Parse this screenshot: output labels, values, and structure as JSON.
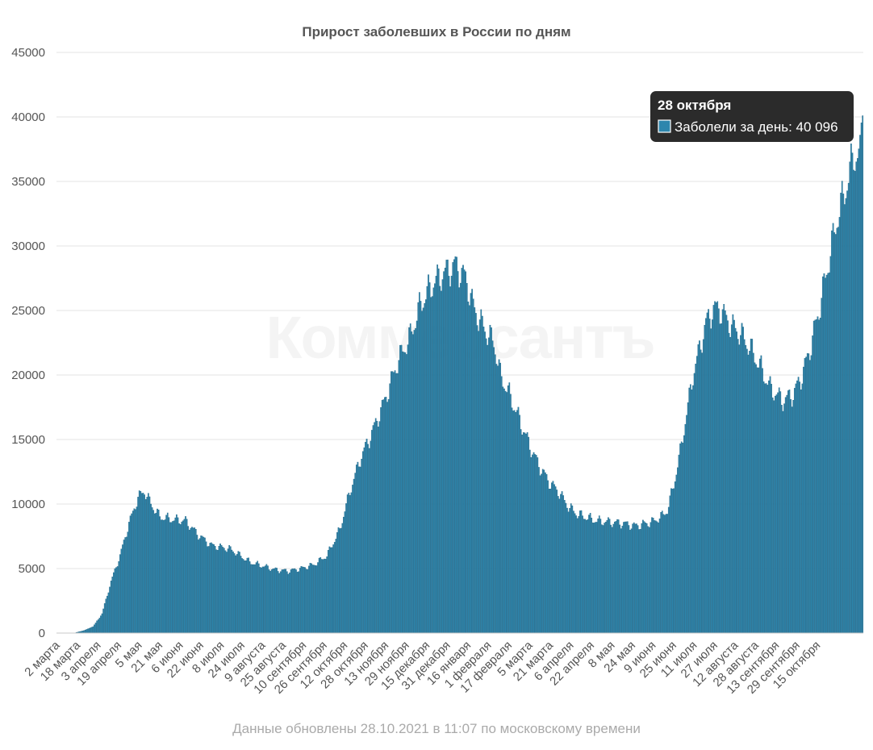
{
  "chart_data": {
    "type": "bar",
    "title": "Прирост заболевших в России по дням",
    "series_name": "Заболели за день",
    "y_axis": {
      "min": 0,
      "max": 45000,
      "ticks": [
        "0",
        "5000",
        "10000",
        "15000",
        "20000",
        "25000",
        "30000",
        "35000",
        "40000",
        "45000"
      ]
    },
    "grid": true,
    "x_tick_labels": [
      "2 марта",
      "18 марта",
      "3 апреля",
      "19 апреля",
      "5 мая",
      "21 мая",
      "6 июня",
      "22 июня",
      "8 июля",
      "24 июля",
      "9 августа",
      "25 августа",
      "10 сентября",
      "26 сентября",
      "12 октября",
      "28 октября",
      "13 ноября",
      "29 ноября",
      "15 декабря",
      "31 декабря",
      "16 января",
      "1 февраля",
      "17 февраля",
      "5 марта",
      "21 марта",
      "6 апреля",
      "22 апреля",
      "8 мая",
      "24 мая",
      "9 июня",
      "25 июня",
      "11 июля",
      "27 июля",
      "12 августа",
      "28 августа",
      "13 сентября",
      "29 сентября",
      "15 октября"
    ],
    "period": {
      "first_day": "2 марта 2020",
      "last_day": "28 октября 2021"
    },
    "daily_profile_knots": [
      [
        0,
        0
      ],
      [
        14,
        20
      ],
      [
        21,
        200
      ],
      [
        28,
        500
      ],
      [
        35,
        1500
      ],
      [
        42,
        4000
      ],
      [
        49,
        6000
      ],
      [
        56,
        8500
      ],
      [
        63,
        10500
      ],
      [
        68,
        11000
      ],
      [
        73,
        10000
      ],
      [
        80,
        9000
      ],
      [
        90,
        8800
      ],
      [
        100,
        8700
      ],
      [
        110,
        7600
      ],
      [
        120,
        6800
      ],
      [
        135,
        6500
      ],
      [
        150,
        5500
      ],
      [
        160,
        5200
      ],
      [
        170,
        4900
      ],
      [
        180,
        4800
      ],
      [
        190,
        5000
      ],
      [
        200,
        5300
      ],
      [
        210,
        6000
      ],
      [
        220,
        8000
      ],
      [
        228,
        11000
      ],
      [
        236,
        13500
      ],
      [
        245,
        15500
      ],
      [
        255,
        18000
      ],
      [
        265,
        21000
      ],
      [
        275,
        23000
      ],
      [
        283,
        25500
      ],
      [
        292,
        27000
      ],
      [
        300,
        27800
      ],
      [
        310,
        28500
      ],
      [
        318,
        27500
      ],
      [
        325,
        25000
      ],
      [
        333,
        23500
      ],
      [
        340,
        22500
      ],
      [
        345,
        20000
      ],
      [
        352,
        18500
      ],
      [
        360,
        16500
      ],
      [
        368,
        14500
      ],
      [
        375,
        13000
      ],
      [
        383,
        11700
      ],
      [
        390,
        11000
      ],
      [
        398,
        9800
      ],
      [
        405,
        9200
      ],
      [
        420,
        8700
      ],
      [
        440,
        8500
      ],
      [
        450,
        8300
      ],
      [
        463,
        8600
      ],
      [
        470,
        9000
      ],
      [
        475,
        9500
      ],
      [
        480,
        11500
      ],
      [
        485,
        14000
      ],
      [
        490,
        17000
      ],
      [
        495,
        20000
      ],
      [
        500,
        22000
      ],
      [
        505,
        24000
      ],
      [
        510,
        25000
      ],
      [
        515,
        25200
      ],
      [
        520,
        24500
      ],
      [
        525,
        23800
      ],
      [
        532,
        23200
      ],
      [
        540,
        22000
      ],
      [
        548,
        20500
      ],
      [
        555,
        19000
      ],
      [
        565,
        18000
      ],
      [
        573,
        18500
      ],
      [
        580,
        20000
      ],
      [
        586,
        22000
      ],
      [
        593,
        25000
      ],
      [
        600,
        28500
      ],
      [
        607,
        32000
      ],
      [
        614,
        34500
      ],
      [
        620,
        37000
      ],
      [
        625,
        37000
      ],
      [
        627,
        40096
      ]
    ],
    "highlighted_point": {
      "label": "28 октября",
      "value": 40096,
      "value_text": "40 096"
    }
  },
  "watermark_text": "Коммерсантъ",
  "footer_text": "Данные обновлены 28.10.2021 в 11:07 по московскому времени",
  "colors": {
    "bar": "#2e86ad",
    "bar_edge": "#1b5f7f",
    "tooltip_bg": "#2b2b2b",
    "grid": "#e3e3e3"
  }
}
